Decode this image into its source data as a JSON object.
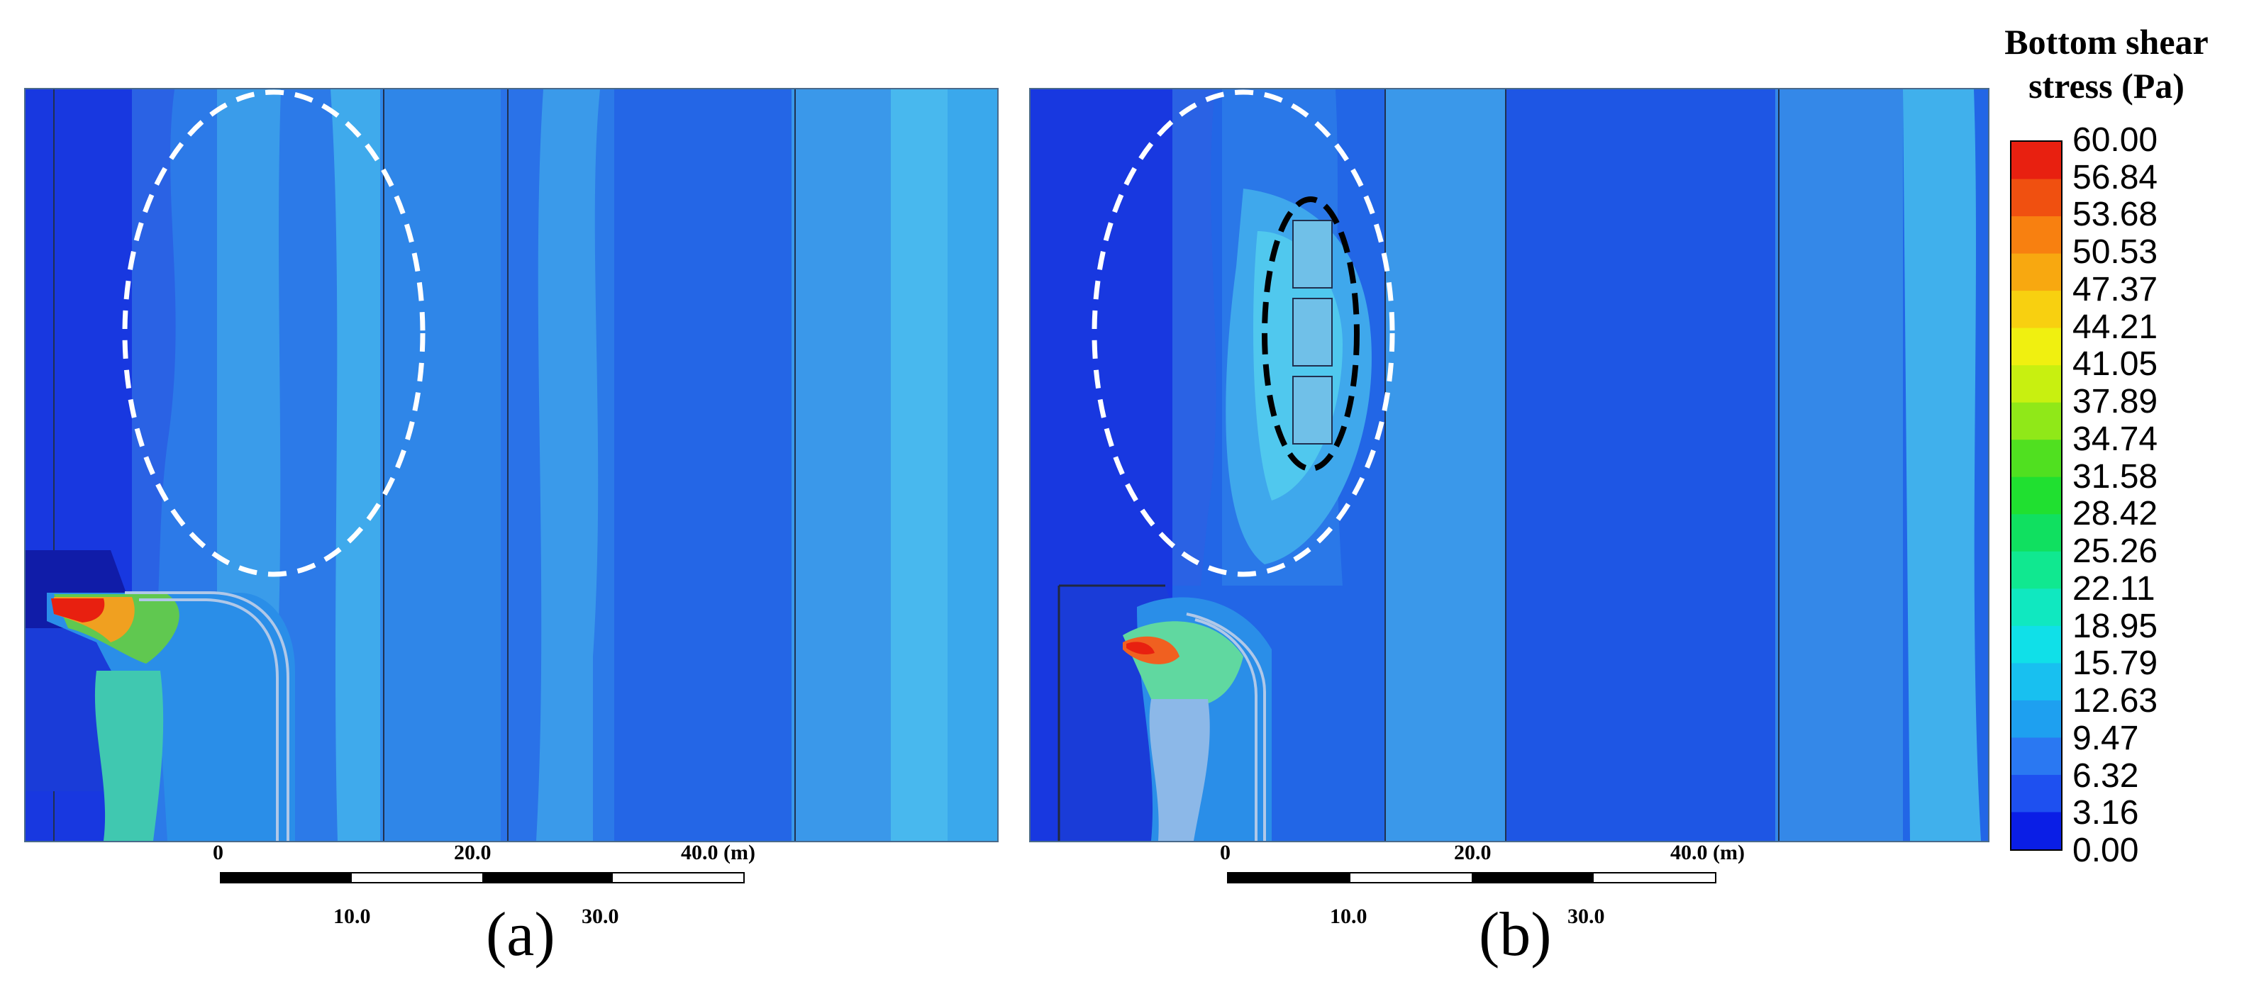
{
  "legend": {
    "title_line1": "Bottom shear",
    "title_line2": "stress (Pa)",
    "ticks": [
      "60.00",
      "56.84",
      "53.68",
      "50.53",
      "47.37",
      "44.21",
      "41.05",
      "37.89",
      "34.74",
      "31.58",
      "28.42",
      "25.26",
      "22.11",
      "18.95",
      "15.79",
      "12.63",
      "9.47",
      "6.32",
      "3.16",
      "0.00"
    ],
    "colors": [
      "#0a1ee6",
      "#1e50f0",
      "#2a78f2",
      "#1ea0f0",
      "#18c0f0",
      "#10e0e8",
      "#10e8c0",
      "#10e890",
      "#10e060",
      "#20e030",
      "#50e020",
      "#90e818",
      "#c8f010",
      "#f0f010",
      "#f8d010",
      "#f8a810",
      "#f88010",
      "#f05010",
      "#e82010"
    ]
  },
  "panels": [
    {
      "label": "(a)",
      "scale": {
        "top": [
          "0",
          "20.0",
          "40.0 (m)"
        ],
        "bottom": [
          "10.0",
          "30.0"
        ]
      }
    },
    {
      "label": "(b)",
      "scale": {
        "top": [
          "0",
          "20.0",
          "40.0 (m)"
        ],
        "bottom": [
          "10.0",
          "30.0"
        ]
      }
    }
  ],
  "colors": {
    "deep_blue": "#1a3ee0",
    "mid_blue": "#2a7ae8",
    "light_blue": "#3fa6ea",
    "cyan": "#40c8ec",
    "high_stress": "#e82010"
  }
}
